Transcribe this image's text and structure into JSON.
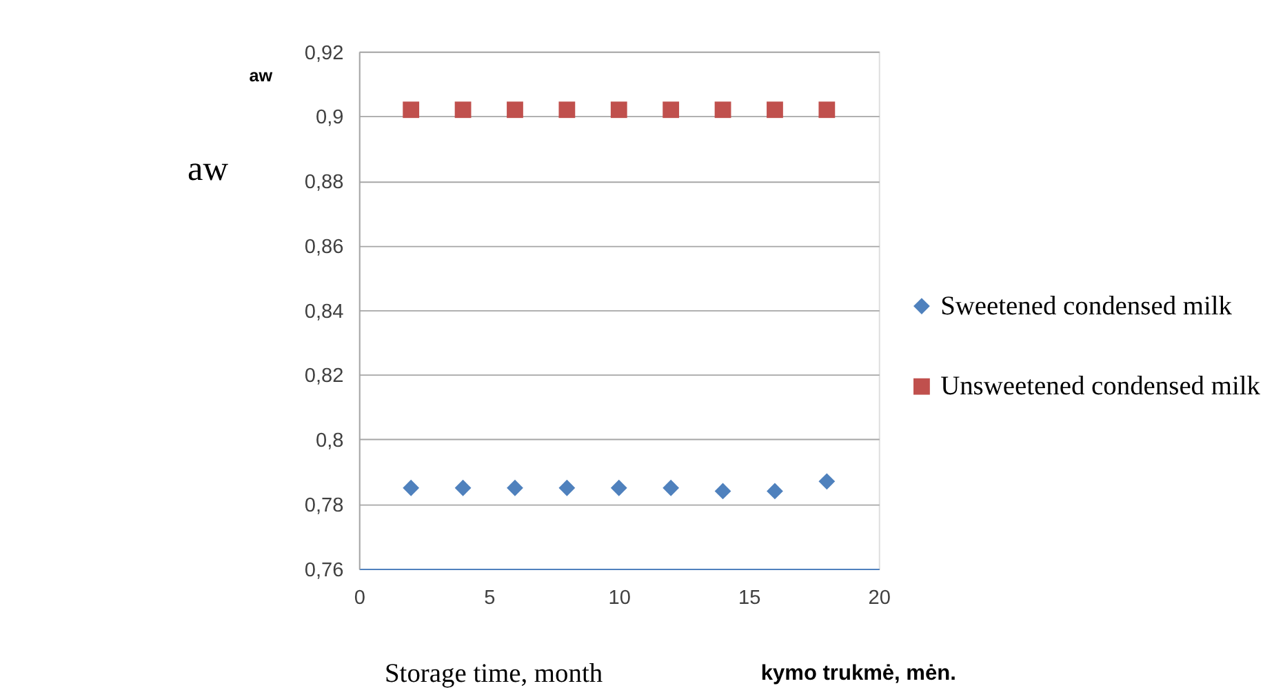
{
  "chart_data": {
    "type": "scatter",
    "xlabel": "Storage time, month",
    "ylabel": "aw",
    "annotations": [
      "aw",
      "kymo trukmė, mėn."
    ],
    "x": [
      2,
      4,
      6,
      8,
      10,
      12,
      14,
      16,
      18
    ],
    "series": [
      {
        "name": "Sweetened condensed milk",
        "color": "#4f81bd",
        "marker": "diamond",
        "values": [
          0.785,
          0.785,
          0.785,
          0.785,
          0.785,
          0.785,
          0.784,
          0.784,
          0.787
        ]
      },
      {
        "name": "Unsweetened condensed milk",
        "color": "#c0504d",
        "marker": "square",
        "values": [
          0.902,
          0.902,
          0.902,
          0.902,
          0.902,
          0.902,
          0.902,
          0.902,
          0.902
        ]
      }
    ],
    "xlim": [
      0,
      20
    ],
    "xticks": [
      0,
      5,
      10,
      15,
      20
    ],
    "ylim": [
      0.76,
      0.92
    ],
    "yticks": [
      {
        "value": 0.76,
        "label": "0,76"
      },
      {
        "value": 0.78,
        "label": "0,78"
      },
      {
        "value": 0.8,
        "label": "0,8"
      },
      {
        "value": 0.82,
        "label": "0,82"
      },
      {
        "value": 0.84,
        "label": "0,84"
      },
      {
        "value": 0.86,
        "label": "0,86"
      },
      {
        "value": 0.88,
        "label": "0,88"
      },
      {
        "value": 0.9,
        "label": "0,9"
      },
      {
        "value": 0.92,
        "label": "0,92"
      }
    ],
    "grid": "y",
    "legend": "right"
  }
}
